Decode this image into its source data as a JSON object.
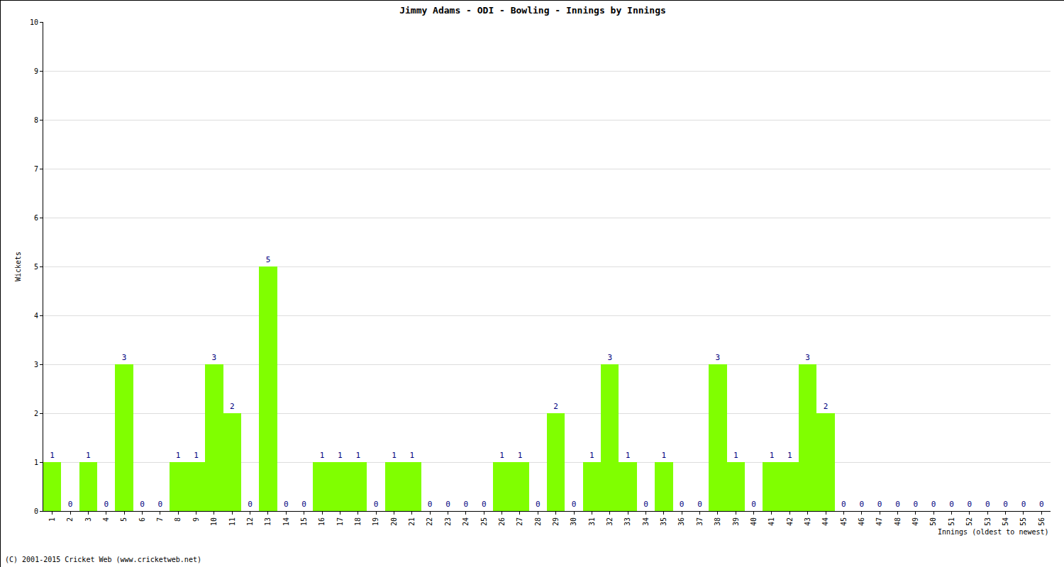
{
  "chart_data": {
    "type": "bar",
    "title": "Jimmy Adams - ODI - Bowling - Innings by Innings",
    "x_label": "Innings (oldest to newest)",
    "y_label": "Wickets",
    "footer": "(C) 2001-2015 Cricket Web (www.cricketweb.net)",
    "categories": [
      "1",
      "2",
      "3",
      "4",
      "5",
      "6",
      "7",
      "8",
      "9",
      "10",
      "11",
      "12",
      "13",
      "14",
      "15",
      "16",
      "17",
      "18",
      "19",
      "20",
      "21",
      "22",
      "23",
      "24",
      "25",
      "26",
      "27",
      "28",
      "29",
      "30",
      "31",
      "32",
      "33",
      "34",
      "35",
      "36",
      "37",
      "38",
      "39",
      "40",
      "41",
      "42",
      "43",
      "44",
      "45",
      "46",
      "47",
      "48",
      "49",
      "50",
      "51",
      "52",
      "53",
      "54",
      "55",
      "56"
    ],
    "values": [
      1,
      0,
      1,
      0,
      3,
      0,
      0,
      1,
      1,
      3,
      2,
      0,
      5,
      0,
      0,
      1,
      1,
      1,
      0,
      1,
      1,
      0,
      0,
      0,
      0,
      1,
      1,
      0,
      2,
      0,
      1,
      3,
      1,
      0,
      1,
      0,
      0,
      3,
      1,
      0,
      1,
      1,
      3,
      2,
      0,
      0,
      0,
      0,
      0,
      0,
      0,
      0,
      0,
      0,
      0,
      0
    ],
    "color": "#80ff00",
    "ylim": [
      0,
      10
    ],
    "yticks": [
      0,
      1,
      2,
      3,
      4,
      5,
      6,
      7,
      8,
      9,
      10
    ],
    "grid": true,
    "data_labels": true
  }
}
